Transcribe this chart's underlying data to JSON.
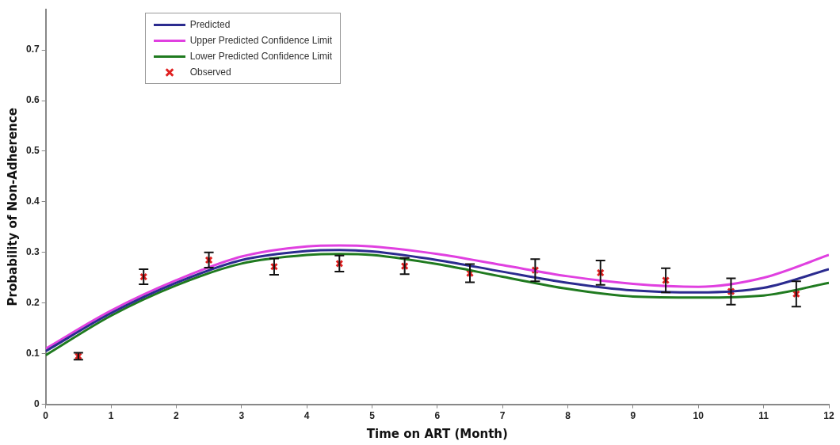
{
  "chart_data": {
    "type": "line",
    "xlabel": "Time on ART (Month)",
    "ylabel": "Probability of Non-Adherence",
    "xlim": [
      0,
      12
    ],
    "xticks": [
      0,
      1,
      2,
      3,
      4,
      5,
      6,
      7,
      8,
      9,
      10,
      11,
      12
    ],
    "ylim": [
      0,
      0.78
    ],
    "yticks": [
      0,
      0.1,
      0.2,
      0.3,
      0.4,
      0.5,
      0.6,
      0.7
    ],
    "grid": false,
    "legend": "top left",
    "series": [
      {
        "name": "Predicted",
        "color": "#2b2b8f",
        "type": "line",
        "marker": "none",
        "x": [
          0,
          1,
          2,
          3,
          4,
          4.5,
          5,
          6,
          7,
          8,
          9,
          10,
          11,
          12
        ],
        "values": [
          0.105,
          0.18,
          0.24,
          0.285,
          0.303,
          0.305,
          0.302,
          0.285,
          0.262,
          0.24,
          0.225,
          0.221,
          0.23,
          0.267
        ]
      },
      {
        "name": "Upper Predicted Confidence Limit",
        "color": "#e040e0",
        "type": "line",
        "marker": "none",
        "x": [
          0,
          1,
          2,
          3,
          4,
          4.5,
          5,
          6,
          7,
          8,
          9,
          10,
          11,
          12
        ],
        "values": [
          0.11,
          0.185,
          0.245,
          0.292,
          0.312,
          0.314,
          0.312,
          0.297,
          0.275,
          0.253,
          0.238,
          0.232,
          0.25,
          0.295
        ]
      },
      {
        "name": "Lower Predicted Confidence Limit",
        "color": "#1f7a1f",
        "type": "line",
        "marker": "none",
        "x": [
          0,
          1,
          2,
          3,
          4,
          4.5,
          5,
          6,
          7,
          8,
          9,
          10,
          11,
          12
        ],
        "values": [
          0.097,
          0.175,
          0.235,
          0.278,
          0.295,
          0.297,
          0.295,
          0.277,
          0.252,
          0.228,
          0.213,
          0.211,
          0.215,
          0.24
        ]
      },
      {
        "name": "Observed",
        "color": "#e02020",
        "type": "scatter",
        "marker": "cross",
        "x": [
          0.5,
          1.5,
          2.5,
          3.5,
          4.5,
          5.5,
          6.5,
          7.5,
          8.5,
          9.5,
          10.5,
          11.5
        ],
        "values": [
          0.095,
          0.252,
          0.285,
          0.272,
          0.278,
          0.273,
          0.259,
          0.265,
          0.26,
          0.245,
          0.223,
          0.218
        ],
        "errors": [
          0.007,
          0.015,
          0.015,
          0.016,
          0.016,
          0.016,
          0.018,
          0.022,
          0.024,
          0.024,
          0.026,
          0.025
        ]
      }
    ]
  }
}
